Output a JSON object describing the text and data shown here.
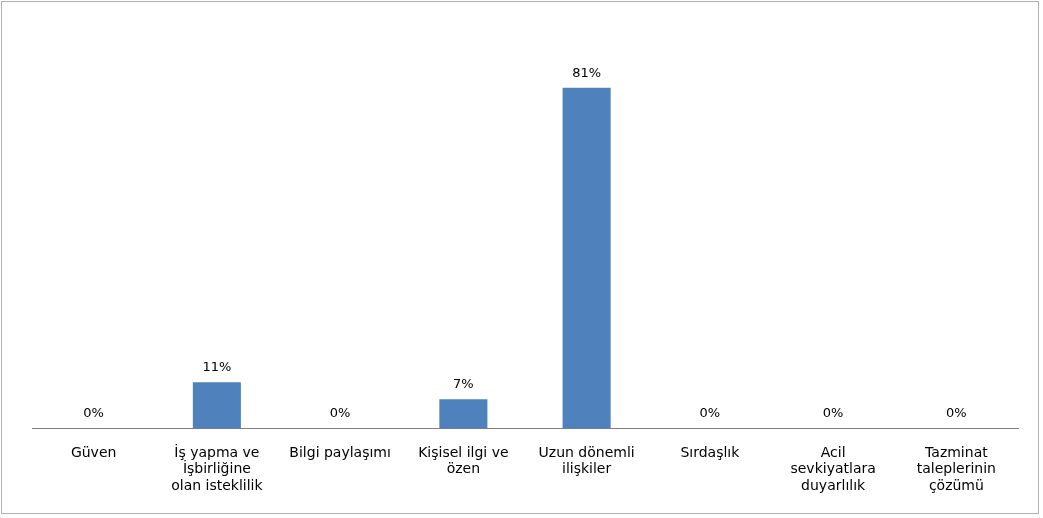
{
  "chart_data": {
    "type": "bar",
    "categories": [
      "Güven",
      "İş yapma ve İşbirliğine olan isteklilik",
      "Bilgi paylaşımı",
      "Kişisel ilgi ve özen",
      "Uzun dönemli ilişkiler",
      "Sırdaşlık",
      "Acil sevkiyatlara duyarlılık",
      "Tazminat taleplerinin çözümü"
    ],
    "values": [
      0,
      11,
      0,
      7,
      81,
      0,
      0,
      0
    ],
    "value_labels": [
      "0%",
      "11%",
      "0%",
      "7%",
      "81%",
      "0%",
      "0%",
      "0%"
    ],
    "color": "#4f81bd",
    "grid": false,
    "legend": false
  }
}
